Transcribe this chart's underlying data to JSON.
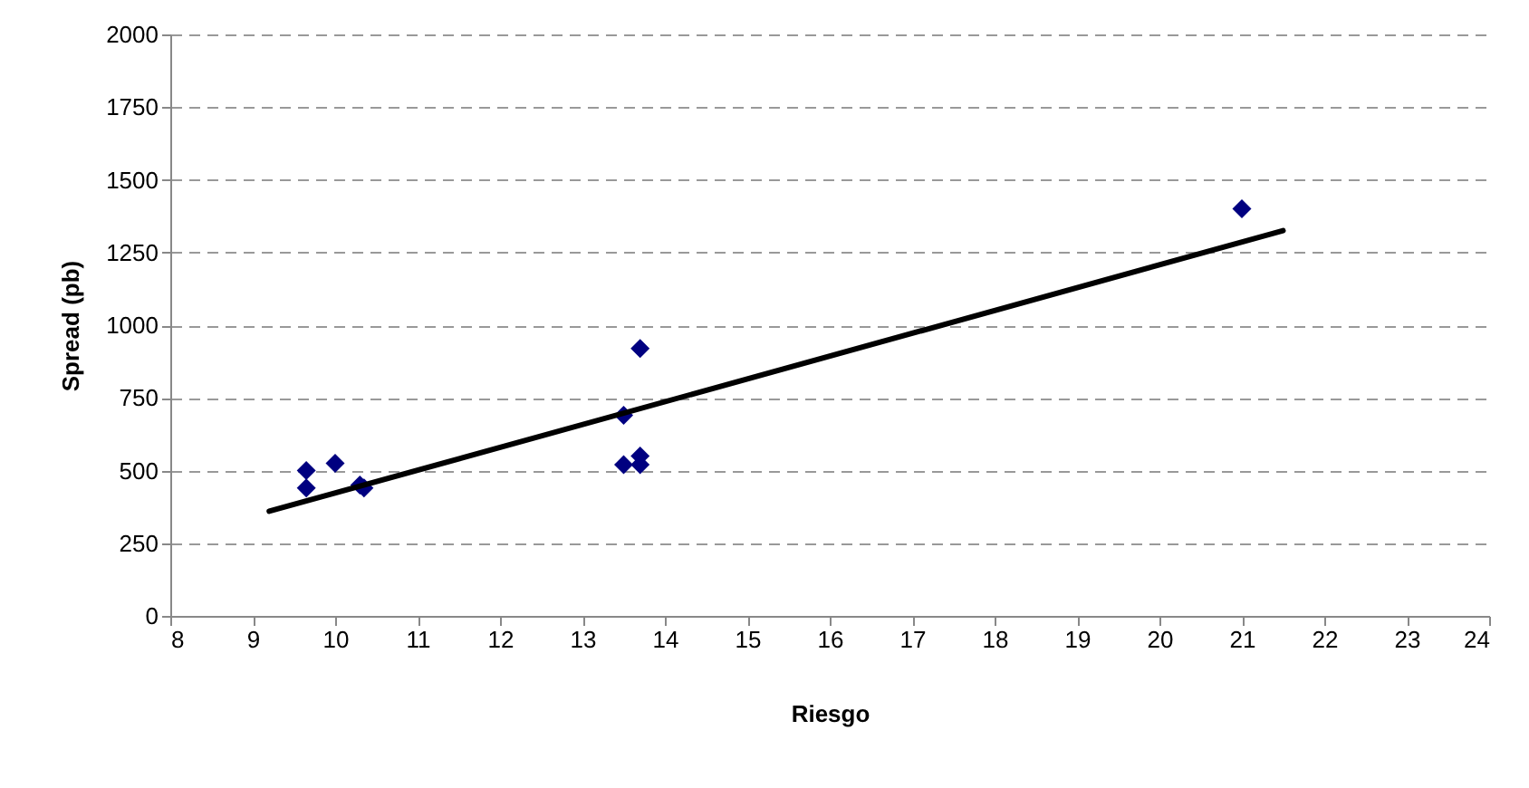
{
  "chart_data": {
    "type": "scatter",
    "xlabel": "Riesgo",
    "ylabel": "Spread (pb)",
    "marker": "diamond",
    "grid": "y",
    "xlim": [
      8,
      24
    ],
    "xticks": [
      8,
      9,
      10,
      11,
      12,
      13,
      14,
      15,
      16,
      17,
      18,
      19,
      20,
      21,
      22,
      23,
      24
    ],
    "ylim": [
      0,
      2000
    ],
    "yticks": [
      0,
      250,
      500,
      750,
      1000,
      1250,
      1500,
      1750,
      2000
    ],
    "series": [
      {
        "color": "#000080",
        "x": [
          9.65,
          9.65,
          10,
          10.3,
          10.35,
          13.5,
          13.5,
          13.7,
          13.7,
          13.7,
          21
        ],
        "values": [
          500,
          440,
          525,
          450,
          440,
          690,
          520,
          920,
          550,
          520,
          1400
        ]
      },
      {
        "type": "line",
        "marker": "none",
        "color": "#000000",
        "x": [
          9.2,
          21.5
        ],
        "values": [
          360,
          1325
        ]
      }
    ]
  }
}
